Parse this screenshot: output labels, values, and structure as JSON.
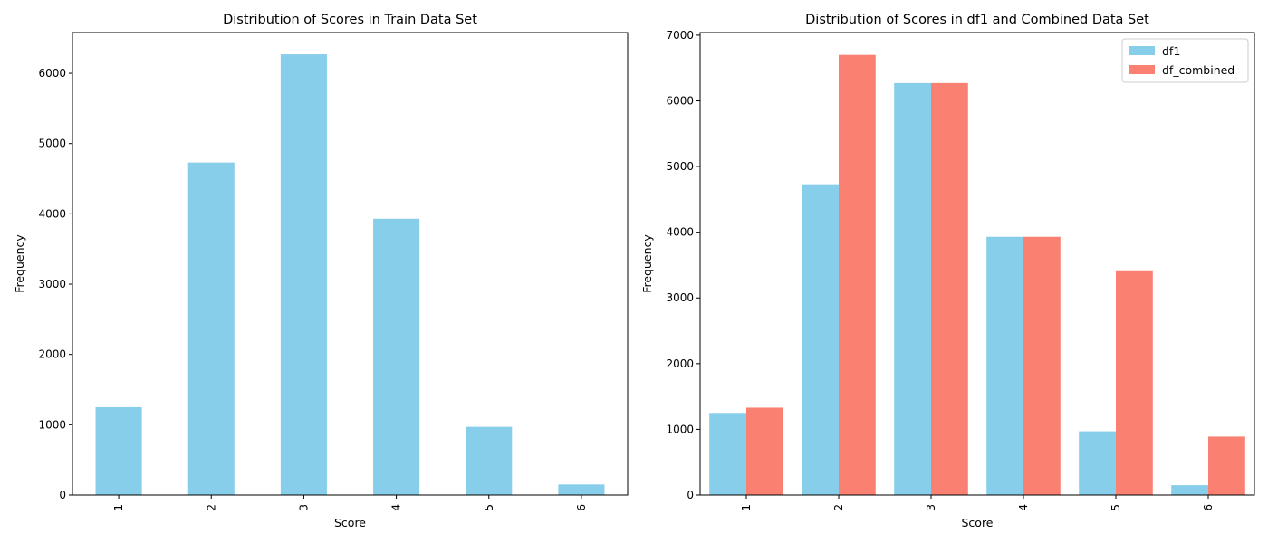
{
  "chart_data": [
    {
      "type": "bar",
      "title": "Distribution of Scores in Train Data Set",
      "xlabel": "Score",
      "ylabel": "Frequency",
      "categories": [
        "1",
        "2",
        "3",
        "4",
        "5",
        "6"
      ],
      "series": [
        {
          "name": "",
          "color": "#87CEEB",
          "values": [
            1250,
            4730,
            6270,
            3930,
            970,
            150
          ]
        }
      ],
      "ylim": [
        0,
        6580
      ],
      "yticks": [
        0,
        1000,
        2000,
        3000,
        4000,
        5000,
        6000
      ],
      "legend": "none",
      "grid": false
    },
    {
      "type": "bar",
      "title": "Distribution of Scores in df1 and Combined Data Set",
      "xlabel": "Score",
      "ylabel": "Frequency",
      "categories": [
        "1",
        "2",
        "3",
        "4",
        "5",
        "6"
      ],
      "series": [
        {
          "name": "df1",
          "color": "#87CEEB",
          "values": [
            1250,
            4730,
            6270,
            3930,
            970,
            150
          ]
        },
        {
          "name": "df_combined",
          "color": "#FA8072",
          "values": [
            1330,
            6700,
            6270,
            3930,
            3420,
            890
          ]
        }
      ],
      "ylim": [
        0,
        7040
      ],
      "yticks": [
        0,
        1000,
        2000,
        3000,
        4000,
        5000,
        6000,
        7000
      ],
      "legend": "top-right",
      "grid": false
    }
  ]
}
